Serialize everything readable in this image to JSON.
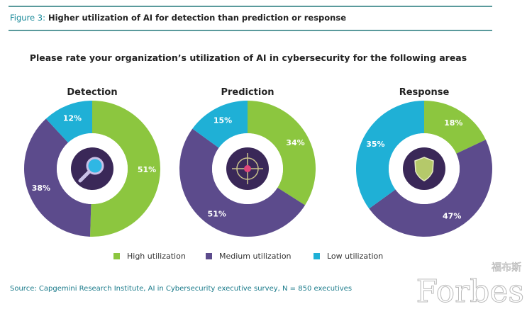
{
  "header": {
    "figure_label": "Figure 3:",
    "figure_title": "Higher utilization of AI for detection than prediction or response"
  },
  "chart_data": {
    "type": "pie",
    "title": "Please rate your organization’s utilization of AI in cybersecurity for the following areas",
    "legend": [
      "High utilization",
      "Medium utilization",
      "Low utilization"
    ],
    "colors": {
      "High utilization": "#8cc63f",
      "Medium utilization": "#5c4b8c",
      "Low utilization": "#1fb0d6"
    },
    "charts": [
      {
        "name": "Detection",
        "icon": "magnifier-icon",
        "values": [
          51,
          38,
          12
        ]
      },
      {
        "name": "Prediction",
        "icon": "crosshair-icon",
        "values": [
          34,
          51,
          15
        ]
      },
      {
        "name": "Response",
        "icon": "shield-icon",
        "values": [
          18,
          47,
          35
        ]
      }
    ]
  },
  "source": "Source: Capgemini Research Institute, AI in Cybersecurity executive survey, N = 850 executives",
  "watermark": {
    "text": "Forbes",
    "cn": "福布斯"
  }
}
